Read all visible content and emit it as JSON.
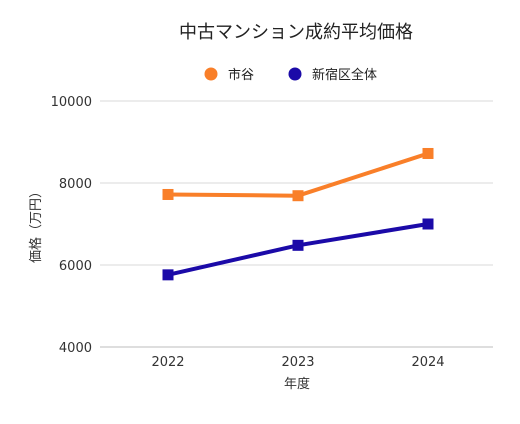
{
  "chart_data": {
    "type": "line",
    "title": "中古マンション成約平均価格",
    "xlabel": "年度",
    "ylabel": "価格（万円）",
    "categories": [
      "2022",
      "2023",
      "2024"
    ],
    "ylim": [
      4000,
      10000
    ],
    "yticks": [
      4000,
      6000,
      8000,
      10000
    ],
    "grid": true,
    "legend_position": "top",
    "series": [
      {
        "name": "市谷",
        "color": "#f97f29",
        "marker": "square",
        "values": [
          7720,
          7690,
          8720
        ]
      },
      {
        "name": "新宿区全体",
        "color": "#1b0aa8",
        "marker": "square",
        "values": [
          5760,
          6480,
          7000
        ]
      }
    ]
  }
}
